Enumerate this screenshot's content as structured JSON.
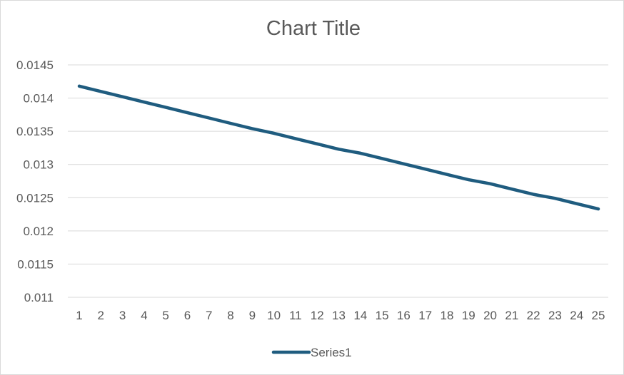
{
  "chart_data": {
    "type": "line",
    "title": "Chart Title",
    "xlabel": "",
    "ylabel": "",
    "x": [
      1,
      2,
      3,
      4,
      5,
      6,
      7,
      8,
      9,
      10,
      11,
      12,
      13,
      14,
      15,
      16,
      17,
      18,
      19,
      20,
      21,
      22,
      23,
      24,
      25
    ],
    "series": [
      {
        "name": "Series1",
        "color": "#1f5c7f",
        "values": [
          0.01418,
          0.0141,
          0.01402,
          0.01394,
          0.01386,
          0.01378,
          0.0137,
          0.01362,
          0.01354,
          0.01347,
          0.01339,
          0.01331,
          0.01323,
          0.01317,
          0.01309,
          0.01301,
          0.01293,
          0.01285,
          0.01277,
          0.01271,
          0.01263,
          0.01255,
          0.01249,
          0.01241,
          0.01233
        ]
      }
    ],
    "y_ticks": [
      "0.011",
      "0.0115",
      "0.012",
      "0.0125",
      "0.013",
      "0.0135",
      "0.014",
      "0.0145"
    ],
    "ylim": [
      0.011,
      0.0145
    ],
    "grid": true,
    "legend_position": "bottom",
    "colors": {
      "gridline": "#d9d9d9",
      "text": "#595959",
      "title": "#595959"
    }
  }
}
